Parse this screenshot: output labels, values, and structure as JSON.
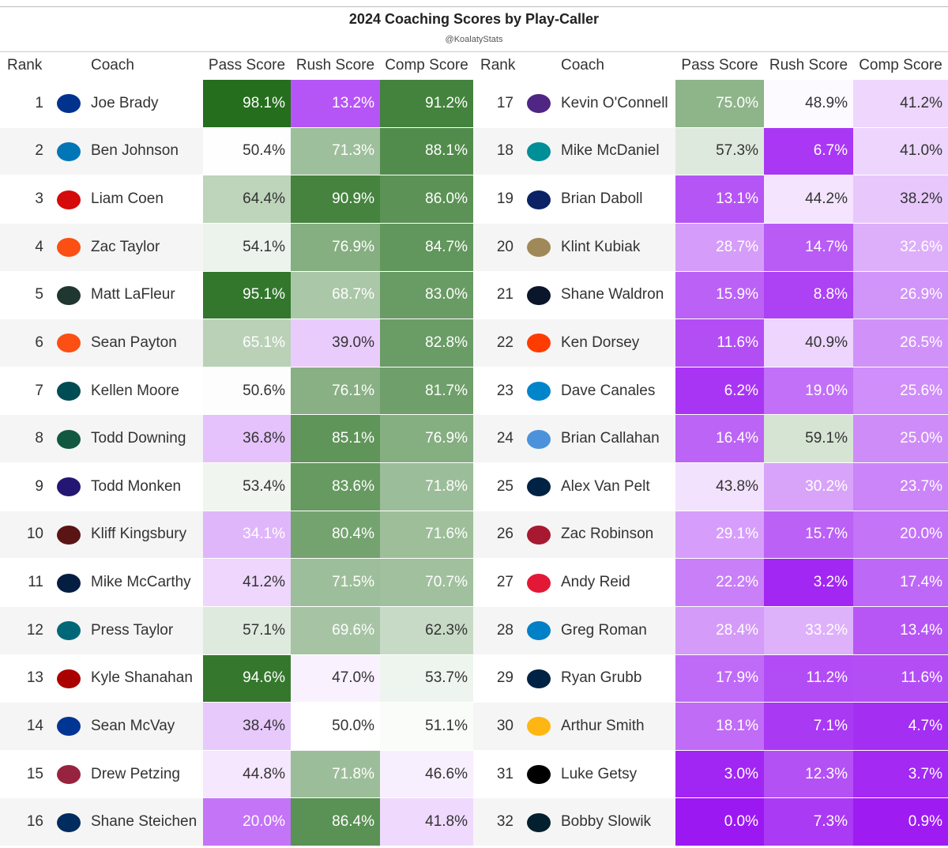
{
  "header": {
    "title": "2024 Coaching Scores by Play-Caller",
    "subtitle": "@KoalatyStats"
  },
  "table": {
    "headers": [
      "Rank",
      "Coach",
      "Pass Score",
      "Rush Score",
      "Comp Score",
      "Rank",
      "Coach",
      "Pass Score",
      "Rush Score",
      "Comp Score"
    ],
    "rows": [
      [
        1,
        "Joe Brady",
        "98.1%",
        "13.2%",
        "91.2%",
        17,
        "Kevin O'Connell",
        "75.0%",
        "48.9%",
        "41.2%"
      ],
      [
        2,
        "Ben Johnson",
        "50.4%",
        "71.3%",
        "88.1%",
        18,
        "Mike McDaniel",
        "57.3%",
        "6.7%",
        "41.0%"
      ],
      [
        3,
        "Liam Coen",
        "64.4%",
        "90.9%",
        "86.0%",
        19,
        "Brian Daboll",
        "13.1%",
        "44.2%",
        "38.2%"
      ],
      [
        4,
        "Zac Taylor",
        "54.1%",
        "76.9%",
        "84.7%",
        20,
        "Klint Kubiak",
        "28.7%",
        "14.7%",
        "32.6%"
      ],
      [
        5,
        "Matt LaFleur",
        "95.1%",
        "68.7%",
        "83.0%",
        21,
        "Shane Waldron",
        "15.9%",
        "8.8%",
        "26.9%"
      ],
      [
        6,
        "Sean Payton",
        "65.1%",
        "39.0%",
        "82.8%",
        22,
        "Ken Dorsey",
        "11.6%",
        "40.9%",
        "26.5%"
      ],
      [
        7,
        "Kellen Moore",
        "50.6%",
        "76.1%",
        "81.7%",
        23,
        "Dave Canales",
        "6.2%",
        "19.0%",
        "25.6%"
      ],
      [
        8,
        "Todd Downing",
        "36.8%",
        "85.1%",
        "76.9%",
        24,
        "Brian Callahan",
        "16.4%",
        "59.1%",
        "25.0%"
      ],
      [
        9,
        "Todd Monken",
        "53.4%",
        "83.6%",
        "71.8%",
        25,
        "Alex Van Pelt",
        "43.8%",
        "30.2%",
        "23.7%"
      ],
      [
        10,
        "Kliff Kingsbury",
        "34.1%",
        "80.4%",
        "71.6%",
        26,
        "Zac Robinson",
        "29.1%",
        "15.7%",
        "20.0%"
      ],
      [
        11,
        "Mike McCarthy",
        "41.2%",
        "71.5%",
        "70.7%",
        27,
        "Andy Reid",
        "22.2%",
        "3.2%",
        "17.4%"
      ],
      [
        12,
        "Press Taylor",
        "57.1%",
        "69.6%",
        "62.3%",
        28,
        "Greg Roman",
        "28.4%",
        "33.2%",
        "13.4%"
      ],
      [
        13,
        "Kyle Shanahan",
        "94.6%",
        "47.0%",
        "53.7%",
        29,
        "Ryan Grubb",
        "17.9%",
        "11.2%",
        "11.6%"
      ],
      [
        14,
        "Sean McVay",
        "38.4%",
        "50.0%",
        "51.1%",
        30,
        "Arthur Smith",
        "18.1%",
        "7.1%",
        "4.7%"
      ],
      [
        15,
        "Drew Petzing",
        "44.8%",
        "71.8%",
        "46.6%",
        31,
        "Luke Getsy",
        "3.0%",
        "12.3%",
        "3.7%"
      ],
      [
        16,
        "Shane Steichen",
        "20.0%",
        "86.4%",
        "41.8%",
        32,
        "Bobby Slowik",
        "0.0%",
        "7.3%",
        "0.9%"
      ]
    ]
  }
}
